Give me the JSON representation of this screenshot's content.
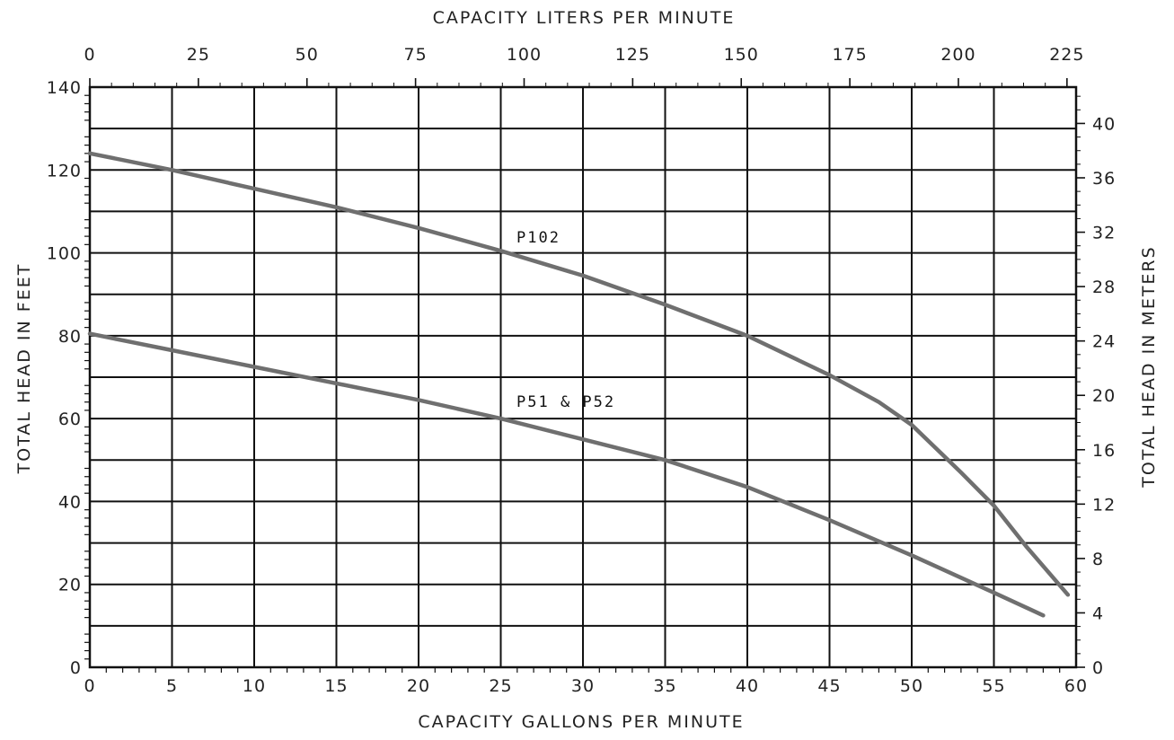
{
  "chart_data": {
    "type": "line",
    "title": "",
    "xlabel": "CAPACITY GALLONS PER MINUTE",
    "x2label": "CAPACITY LITERS PER MINUTE",
    "ylabel": "TOTAL HEAD IN FEET",
    "y2label": "TOTAL HEAD IN METERS",
    "xlim": [
      0,
      60
    ],
    "ylim": [
      0,
      140
    ],
    "x_ticks": [
      0,
      5,
      10,
      15,
      20,
      25,
      30,
      35,
      40,
      45,
      50,
      55,
      60
    ],
    "y_ticks": [
      0,
      20,
      40,
      60,
      80,
      100,
      120,
      140
    ],
    "x2_ticks": [
      0,
      25,
      50,
      75,
      100,
      125,
      150,
      175,
      200,
      225
    ],
    "y2_ticks": [
      0,
      4,
      8,
      12,
      16,
      20,
      24,
      28,
      32,
      36,
      40
    ],
    "liters_per_gallon": 3.785,
    "meters_per_foot": 0.3048,
    "grid": true,
    "series": [
      {
        "name": "P102",
        "x": [
          0,
          5,
          10,
          15,
          20,
          25,
          30,
          35,
          40,
          45,
          48,
          50,
          53,
          55,
          57,
          59.5
        ],
        "y": [
          124,
          120,
          115.5,
          111,
          106,
          100.5,
          94.5,
          87.5,
          80,
          70.5,
          64,
          58.5,
          47,
          39,
          29,
          17.5
        ]
      },
      {
        "name": "P51 & P52",
        "x": [
          0,
          5,
          10,
          15,
          20,
          25,
          30,
          35,
          40,
          45,
          50,
          55,
          58
        ],
        "y": [
          80.5,
          76.5,
          72.5,
          68.5,
          64.5,
          60,
          55,
          50,
          43.5,
          35.5,
          27,
          18,
          12.5
        ]
      }
    ]
  }
}
